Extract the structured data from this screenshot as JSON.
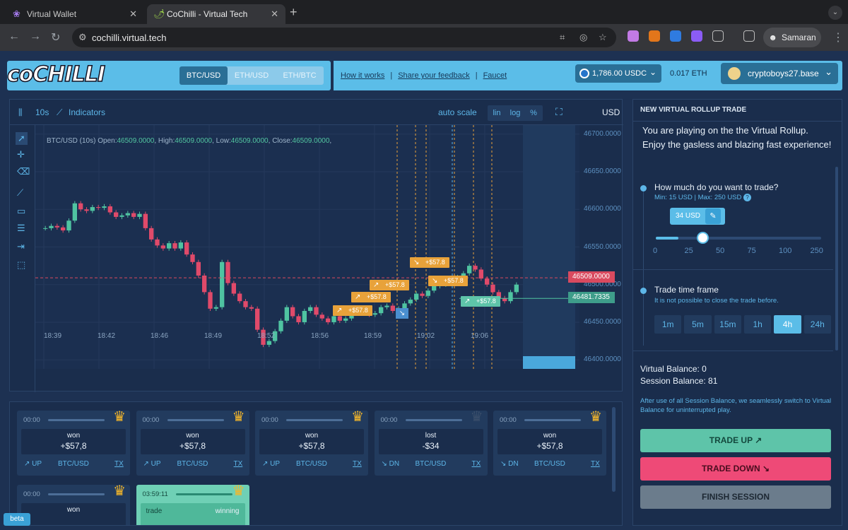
{
  "browser": {
    "tabs": [
      {
        "title": "Virtual Wallet",
        "active": false
      },
      {
        "title": "CoChilli - Virtual Tech",
        "active": true
      }
    ],
    "url": "cochilli.virtual.tech",
    "profile": "Samaran"
  },
  "header": {
    "logo": "coCHILLI",
    "pairs": [
      {
        "label": "BTC/USD",
        "selected": true
      },
      {
        "label": "ETH/USD",
        "selected": false
      },
      {
        "label": "ETH/BTC",
        "selected": false
      }
    ],
    "links": [
      "How it works",
      "Share your feedback",
      "Faucet"
    ],
    "usdc_balance": "1,786.00 USDC",
    "eth_balance": "0.017 ETH",
    "username": "cryptoboys27.base"
  },
  "chart_toolbar": {
    "interval": "10s",
    "indicators": "Indicators",
    "auto_scale": "auto scale",
    "scales": [
      "lin",
      "log",
      "%"
    ],
    "currency": "USD"
  },
  "chart_data": {
    "type": "candlestick",
    "legend": {
      "symbol": "BTC/USD (10s)",
      "open_label": "Open:",
      "open": "46509.0000",
      "high_label": "High:",
      "high": "46509.0000",
      "low_label": "Low:",
      "low": "46509.0000",
      "close_label": "Close:",
      "close": "46509.0000"
    },
    "y_ticks": [
      "46700.0000",
      "46650.0000",
      "46600.0000",
      "46550.0000",
      "46500.0000",
      "46450.0000",
      "46400.0000"
    ],
    "ylim": [
      46388,
      46712
    ],
    "x_ticks": [
      "18:39",
      "18:42",
      "18:46",
      "18:49",
      "18:52",
      "18:56",
      "18:59",
      "19:02",
      "19:06"
    ],
    "current_price": "46509.0000",
    "entry_price": "46481.7335",
    "trade_markers": [
      {
        "dir": "up",
        "label": "+$57.8"
      },
      {
        "dir": "up",
        "label": "+$57.8"
      },
      {
        "dir": "up",
        "label": "+$57.8"
      },
      {
        "dir": "down",
        "label": "+$57.8"
      },
      {
        "dir": "down",
        "label": "+$57.8"
      },
      {
        "dir": "up",
        "label": "+$57.8"
      }
    ],
    "closes": [
      46575,
      46578,
      46576,
      46572,
      46585,
      46608,
      46600,
      46598,
      46603,
      46602,
      46604,
      46596,
      46590,
      46592,
      46595,
      46590,
      46594,
      46575,
      46560,
      46552,
      46548,
      46555,
      46548,
      46556,
      46540,
      46530,
      46512,
      46490,
      46468,
      46470,
      46530,
      46502,
      46488,
      46478,
      46470,
      46468,
      46440,
      46420,
      46425,
      46438,
      46452,
      46470,
      46458,
      46450,
      46465,
      46470,
      46460,
      46455,
      46450,
      46458,
      46452,
      46455,
      46465,
      46468,
      46462,
      46460,
      46462,
      46470,
      46472,
      46465,
      46468,
      46475,
      46480,
      46488,
      46485,
      46492,
      46498,
      46500,
      46503,
      46505,
      46510,
      46515,
      46525,
      46520,
      46508,
      46500,
      46490,
      46482,
      46478,
      46490,
      46500
    ]
  },
  "panel": {
    "title": "NEW VIRTUAL ROLLUP TRADE",
    "intro": "You are playing on the the Virtual Rollup. Enjoy the gasless and blazing fast experience!",
    "q1": "How much do you want to trade?",
    "q1_sub": "Min: 15 USD | Max: 250 USD",
    "amount": "34 USD",
    "amount_value": 34,
    "slider_max": 250,
    "slider_ticks": [
      "0",
      "25",
      "50",
      "75",
      "100",
      "250"
    ],
    "q2": "Trade time frame",
    "q2_sub": "It is not possible to close the trade before.",
    "timeframes": [
      {
        "label": "1m"
      },
      {
        "label": "5m"
      },
      {
        "label": "15m"
      },
      {
        "label": "1h"
      },
      {
        "label": "4h",
        "selected": true
      },
      {
        "label": "24h"
      }
    ],
    "virtual_balance": "Virtual Balance: 0",
    "session_balance": "Session Balance: 81",
    "note": "After use of all Session Balance, we seamlessly switch to Virtual Balance for uninterrupted play.",
    "trade_up": "TRADE UP ↗",
    "trade_down": "TRADE DOWN ↘",
    "finish": "FINISH SESSION",
    "colors": {
      "up": "#5ec4a9",
      "down": "#ee4a77",
      "finish": "#6b7c8c"
    }
  },
  "trades": [
    {
      "time": "00:00",
      "status": "won",
      "pnl": "+$57,8",
      "dir": "↗ UP",
      "pair": "BTC/USD",
      "tx": "TX"
    },
    {
      "time": "00:00",
      "status": "won",
      "pnl": "+$57,8",
      "dir": "↗ UP",
      "pair": "BTC/USD",
      "tx": "TX"
    },
    {
      "time": "00:00",
      "status": "won",
      "pnl": "+$57,8",
      "dir": "↗ UP",
      "pair": "BTC/USD",
      "tx": "TX"
    },
    {
      "time": "00:00",
      "status": "lost",
      "pnl": "-$34",
      "dir": "↘ DN",
      "pair": "BTC/USD",
      "tx": "TX"
    },
    {
      "time": "00:00",
      "status": "won",
      "pnl": "+$57,8",
      "dir": "↘ DN",
      "pair": "BTC/USD",
      "tx": "TX"
    },
    {
      "time": "00:00",
      "status": "won",
      "pnl": "",
      "dir": "",
      "pair": "",
      "tx": ""
    },
    {
      "time": "03:59:11",
      "status": "trade",
      "pnl": "winning",
      "dir": "",
      "pair": "",
      "tx": ""
    }
  ],
  "beta": "beta"
}
